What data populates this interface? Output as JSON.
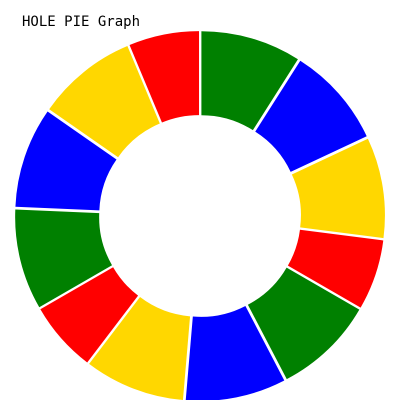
{
  "chart_data": {
    "type": "pie",
    "variant": "donut",
    "title": "HOLE PIE Graph",
    "gap_between_slices": true,
    "slices": [
      {
        "value": 10,
        "color": "#008000"
      },
      {
        "value": 10,
        "color": "#0000ff"
      },
      {
        "value": 10,
        "color": "#ffd700"
      },
      {
        "value": 7,
        "color": "#ff0000"
      },
      {
        "value": 10,
        "color": "#008000"
      },
      {
        "value": 10,
        "color": "#0000ff"
      },
      {
        "value": 10,
        "color": "#ffd700"
      },
      {
        "value": 7,
        "color": "#ff0000"
      },
      {
        "value": 10,
        "color": "#008000"
      },
      {
        "value": 10,
        "color": "#0000ff"
      },
      {
        "value": 10,
        "color": "#ffd700"
      },
      {
        "value": 7,
        "color": "#ff0000"
      }
    ]
  }
}
